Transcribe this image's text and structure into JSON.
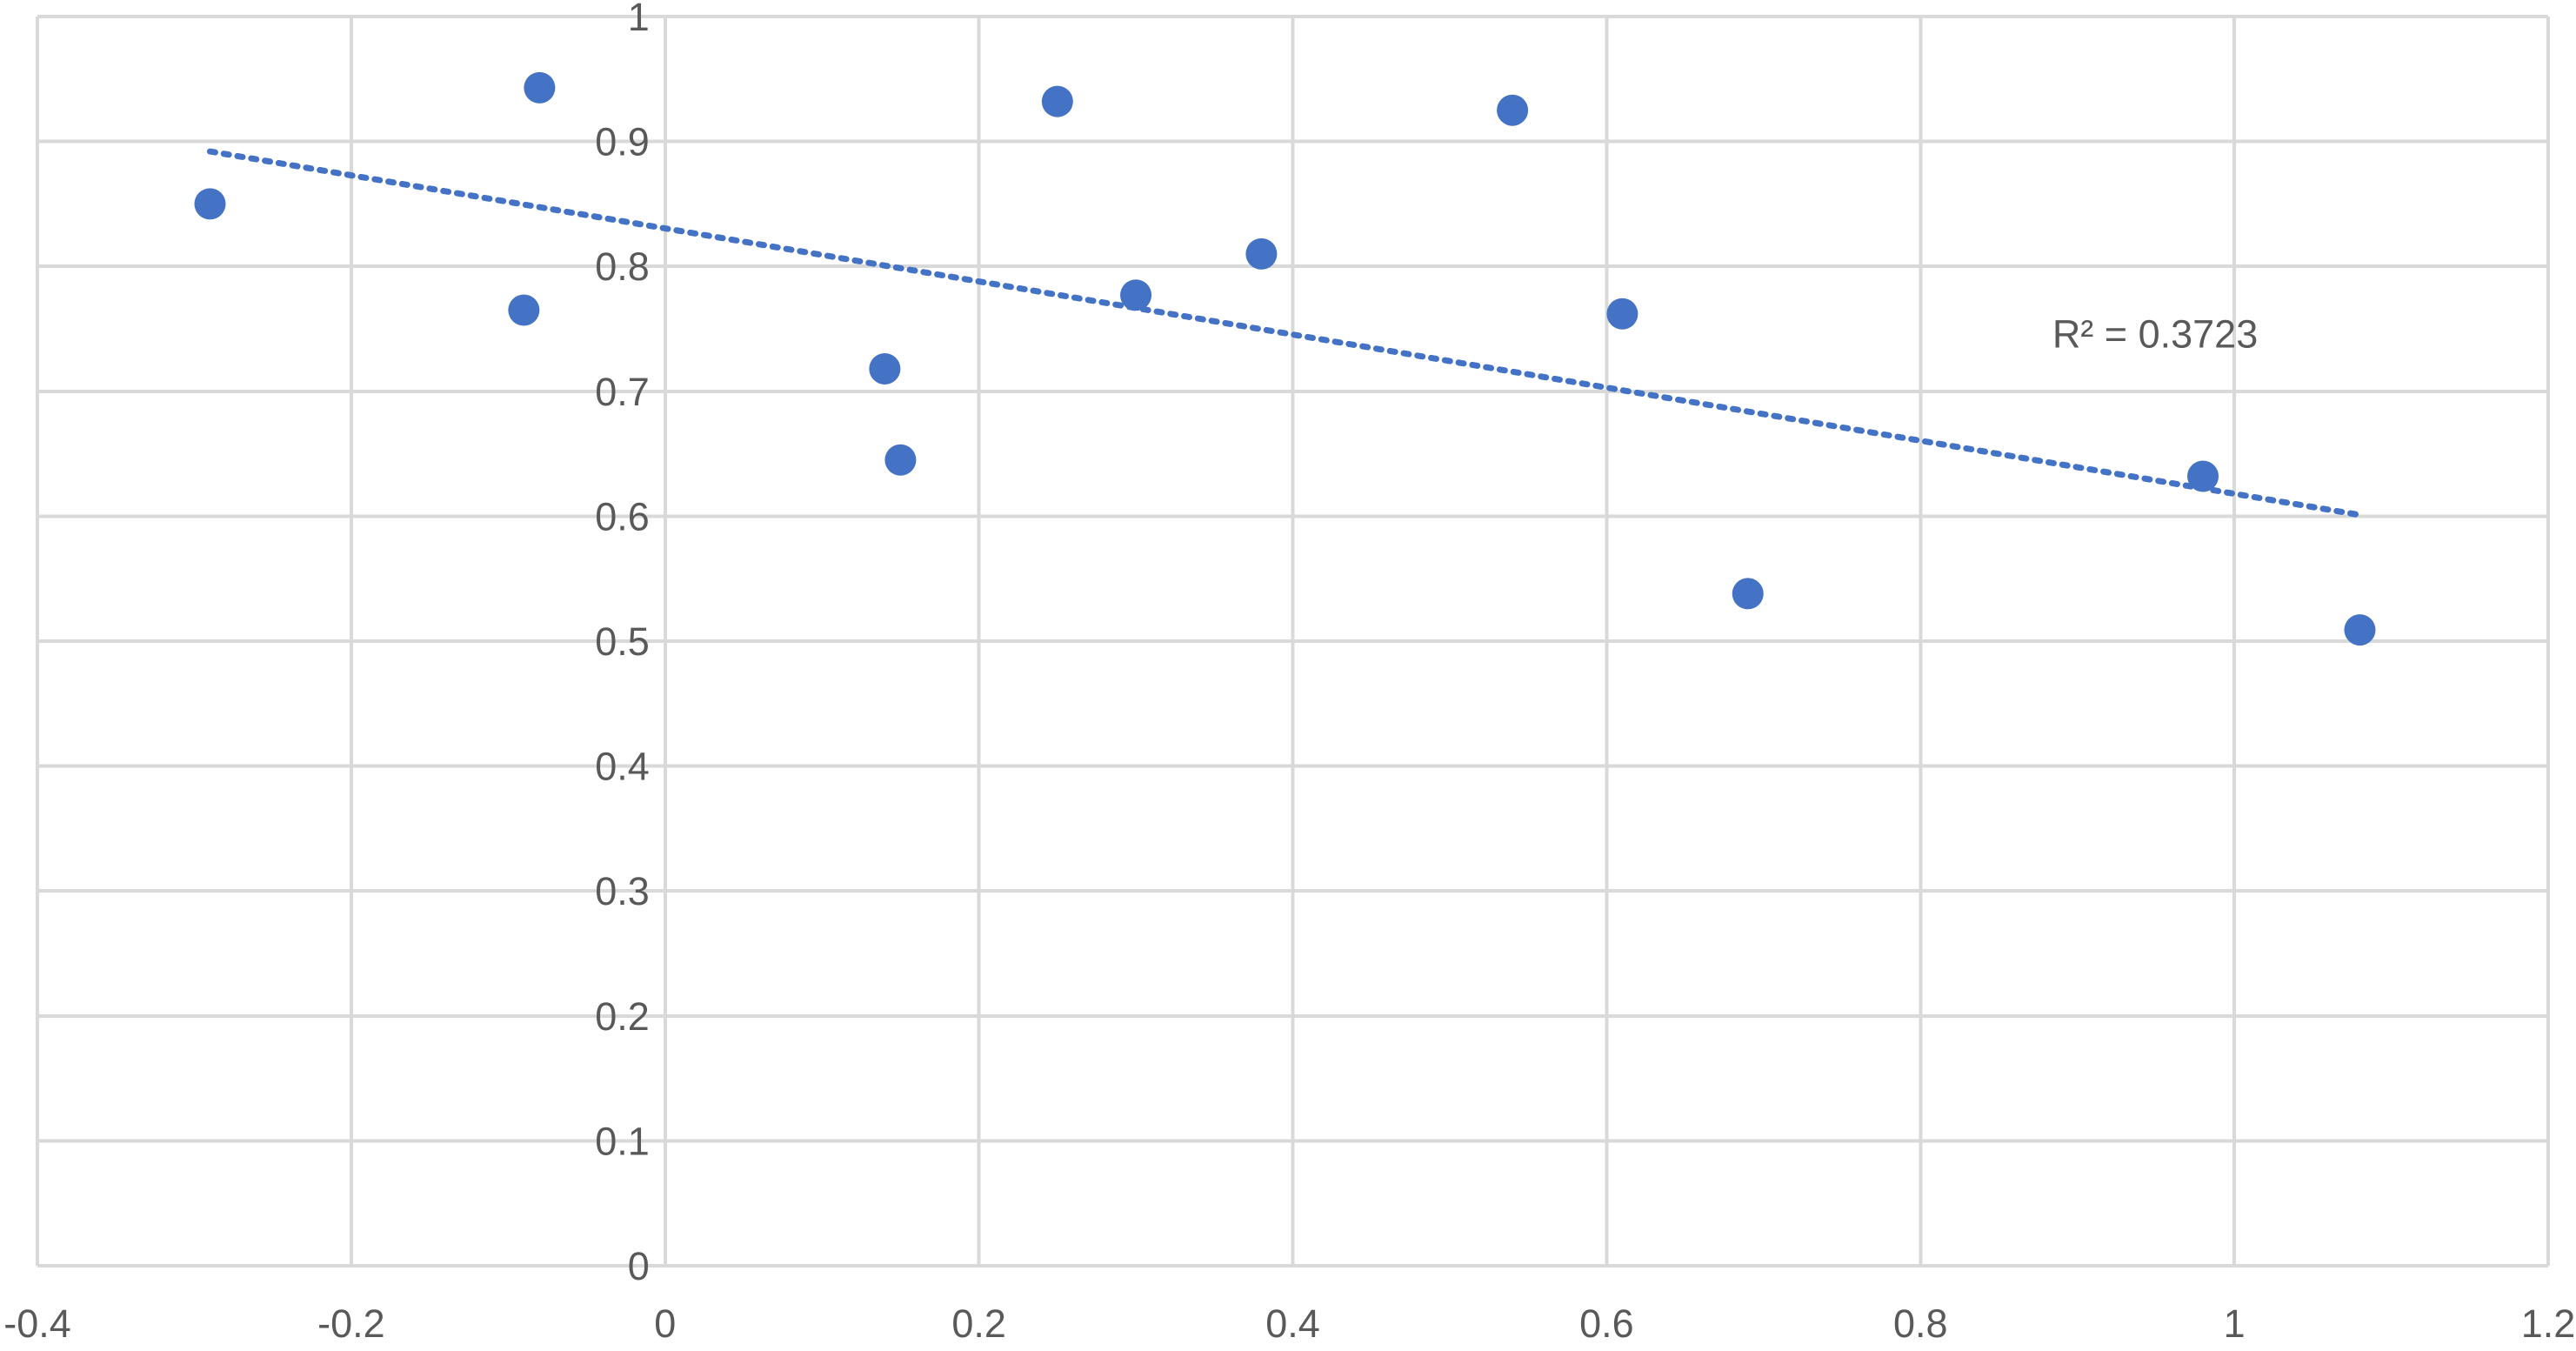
{
  "chart_data": {
    "type": "scatter",
    "title": "",
    "xlabel": "",
    "ylabel": "",
    "xlim": [
      -0.4,
      1.2
    ],
    "ylim": [
      0,
      1
    ],
    "x_ticks": [
      -0.4,
      -0.2,
      0,
      0.2,
      0.4,
      0.6,
      0.8,
      1,
      1.2
    ],
    "y_ticks": [
      0,
      0.1,
      0.2,
      0.3,
      0.4,
      0.5,
      0.6,
      0.7,
      0.8,
      0.9,
      1
    ],
    "x_tick_labels": [
      "-0.4",
      "-0.2",
      "0",
      "0.2",
      "0.4",
      "0.6",
      "0.8",
      "1",
      "1.2"
    ],
    "y_tick_labels": [
      "0",
      "0.1",
      "0.2",
      "0.3",
      "0.4",
      "0.5",
      "0.6",
      "0.7",
      "0.8",
      "0.9",
      "1"
    ],
    "grid": true,
    "legend": "none",
    "series": [
      {
        "points": [
          {
            "x": -0.29,
            "y": 0.85
          },
          {
            "x": -0.09,
            "y": 0.765
          },
          {
            "x": -0.08,
            "y": 0.943
          },
          {
            "x": 0.14,
            "y": 0.718
          },
          {
            "x": 0.15,
            "y": 0.645
          },
          {
            "x": 0.25,
            "y": 0.932
          },
          {
            "x": 0.3,
            "y": 0.777
          },
          {
            "x": 0.38,
            "y": 0.81
          },
          {
            "x": 0.54,
            "y": 0.925
          },
          {
            "x": 0.61,
            "y": 0.762
          },
          {
            "x": 0.69,
            "y": 0.538
          },
          {
            "x": 0.98,
            "y": 0.632
          },
          {
            "x": 1.08,
            "y": 0.509
          }
        ]
      }
    ],
    "trendline": {
      "type": "linear",
      "x_start": -0.29,
      "x_end": 1.08,
      "y_start": 0.892,
      "y_end": 0.601,
      "label": "R² = 0.3723",
      "label_anchor": {
        "x": 0.884,
        "y": 0.735
      },
      "style": "dotted"
    },
    "colors": {
      "points": "#4472c4",
      "trendline": "#4472c4",
      "grid": "#d9d9d9",
      "text": "#595959"
    }
  }
}
